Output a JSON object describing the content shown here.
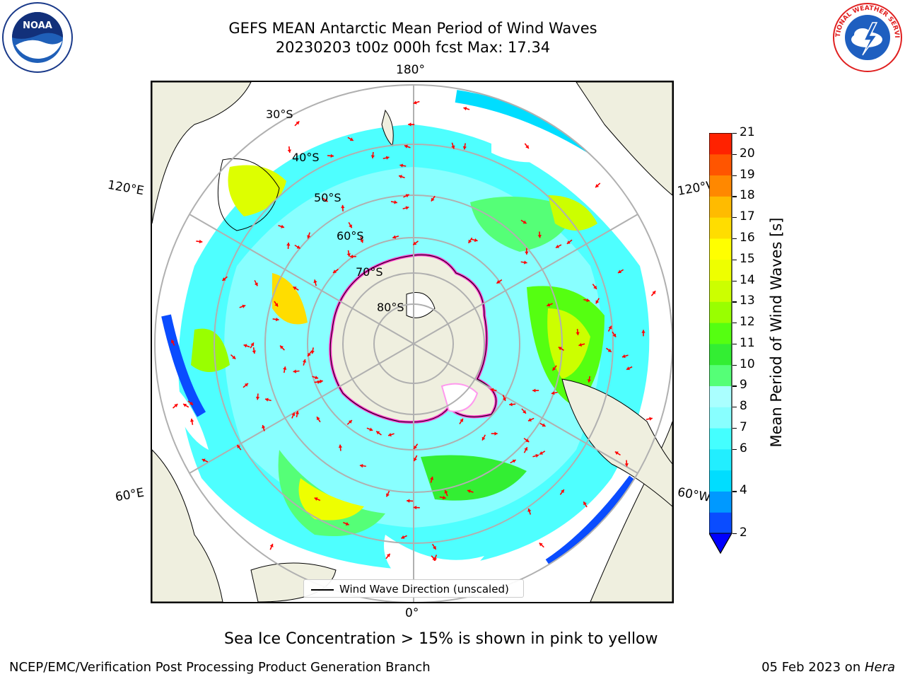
{
  "title": {
    "line1": "GEFS MEAN Antarctic Mean Period of Wind Waves",
    "line2": "20230203 t00z 000h fcst   Max: 17.34"
  },
  "map": {
    "projection": "south-polar-stereographic",
    "lon_labels": {
      "top": "180°",
      "bottom": "0°",
      "upper_left": "120°E",
      "upper_right": "120°W",
      "lower_left": "60°E",
      "lower_right": "60°W"
    },
    "lat_labels": [
      "30°S",
      "40°S",
      "50°S",
      "60°S",
      "70°S",
      "80°S"
    ],
    "land_color": "#efefdf",
    "ocean_no_data_color": "#ffffff",
    "gridline_color": "#b0b0b0",
    "arrow_color": "#ff0000",
    "sea_ice_colors": [
      "#ff33cc",
      "#ff99ee",
      "#ffee88"
    ]
  },
  "legend": {
    "line_label": "Wind Wave Direction (unscaled)"
  },
  "colorbar": {
    "label": "Mean Period of Wind Waves [s]",
    "ticks": [
      "21",
      "20",
      "19",
      "18",
      "17",
      "16",
      "15",
      "14",
      "13",
      "12",
      "11",
      "10",
      "9",
      "8",
      "7",
      "6",
      "4",
      "2"
    ],
    "levels": [
      2,
      3,
      4,
      5,
      6,
      7,
      8,
      9,
      10,
      11,
      12,
      13,
      14,
      15,
      16,
      17,
      18,
      19,
      20,
      21
    ],
    "colors": [
      "#0a4cff",
      "#0099ff",
      "#00ddff",
      "#22eeff",
      "#44ffff",
      "#88ffff",
      "#aaffff",
      "#55ff77",
      "#33ee33",
      "#55ff11",
      "#99ff00",
      "#ccff00",
      "#eeff00",
      "#ffff00",
      "#ffdd00",
      "#ffbb00",
      "#ff8800",
      "#ff5500",
      "#ff2200"
    ],
    "extend_color": "#0000ff"
  },
  "caption": "Sea Ice Concentration > 15% is shown in pink to yellow",
  "footer": {
    "left": "NCEP/EMC/Verification Post Processing Product Generation Branch",
    "right_date": "05 Feb 2023 on ",
    "right_host": "Hera"
  },
  "logos": {
    "left": "NOAA",
    "right": "NATIONAL WEATHER SERVICE"
  }
}
